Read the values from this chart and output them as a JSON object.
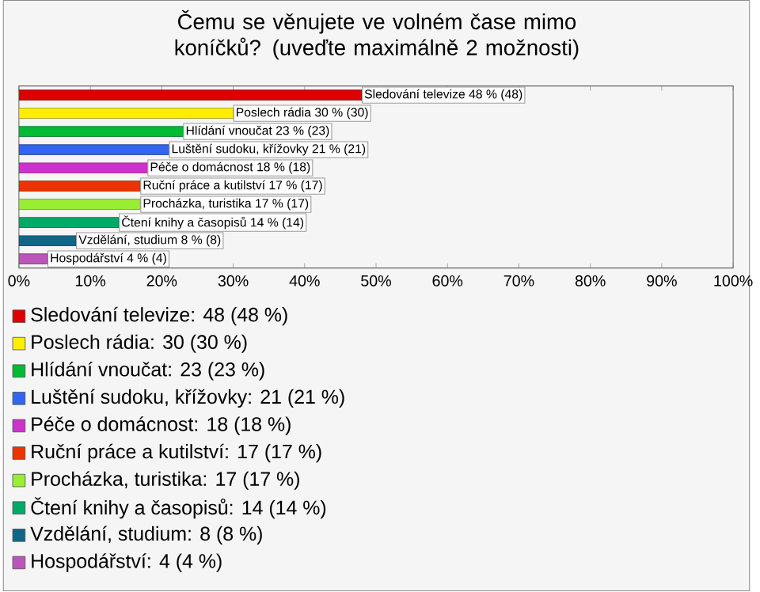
{
  "chart_data": {
    "type": "bar",
    "orientation": "horizontal",
    "title": "Čemu se věnujete ve volném čase mimo koníčků? (uveďte maximálně 2 možnosti)",
    "categories": [
      null,
      null,
      null,
      null,
      null,
      null,
      null,
      null,
      null,
      null
    ],
    "values": [
      48,
      30,
      23,
      21,
      18,
      17,
      17,
      14,
      8,
      4
    ],
    "colors": [
      "#dd0000",
      "#ffee00",
      "#00bb33",
      "#3366ee",
      "#cc33cc",
      "#ee3300",
      "#99ee33",
      "#00aa66",
      "#116688",
      "#bb55bb"
    ],
    "value_labels": [
      "Sledování televize 48 % (48)",
      "Poslech rádia 30 % (30)",
      "Hlídání vnoučat 23 % (23)",
      "Luštění sudoku, křížovky 21 % (21)",
      "Péče o domácnost 18 % (18)",
      "Ruční práce a kutilství 17 % (17)",
      "Procházka, turistika 17 % (17)",
      "Čtení knihy a časopisů 14 % (14)",
      "Vzdělání, studium 8 % (8)",
      "Hospodářství 4 % (4)"
    ],
    "annotations": [
      "Sledování televize: 48 (48 %)",
      "Poslech rádia: 30 (30 %)",
      "Hlídání vnoučat: 23 (23 %)",
      "Luštění sudoku, křížovky: 21 (21 %)",
      "Péče o domácnost: 18 (18 %)",
      "Ruční práce a kutilství: 17 (17 %)",
      "Procházka, turistika: 17 (17 %)",
      "Čtení knihy a časopisů: 14 (14 %)",
      "Vzdělání, studium: 8 (8 %)",
      "Hospodářství: 4 (4 %)"
    ],
    "xlim": [
      0,
      100
    ],
    "xticks": [
      {
        "value": 0,
        "label": "0%"
      },
      {
        "value": 10,
        "label": "10%"
      },
      {
        "value": 20,
        "label": "20%"
      },
      {
        "value": 30,
        "label": "30%"
      },
      {
        "value": 40,
        "label": "40%"
      },
      {
        "value": 50,
        "label": "50%"
      },
      {
        "value": 60,
        "label": "60%"
      },
      {
        "value": 70,
        "label": "70%"
      },
      {
        "value": 80,
        "label": "80%"
      },
      {
        "value": 90,
        "label": "90%"
      },
      {
        "value": 100,
        "label": "100%"
      }
    ],
    "tick_labels": "x",
    "grid": false
  }
}
